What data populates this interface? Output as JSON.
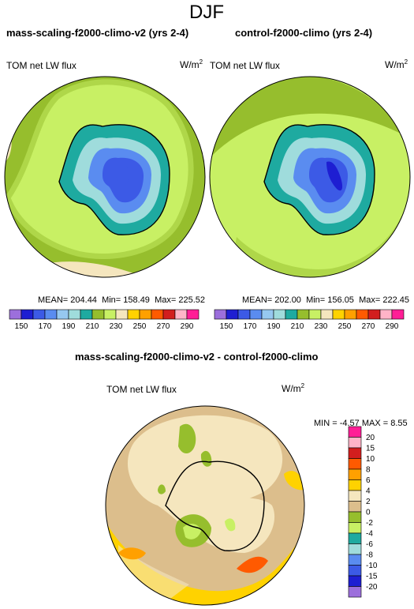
{
  "figure_title": "DJF",
  "panels": [
    {
      "title": "mass-scaling-f2000-climo-v2 (yrs 2-4)",
      "variable": "TOM net LW flux",
      "units_base": "W/m",
      "units_exp": "2",
      "mean_label": "MEAN=",
      "mean": "204.44",
      "min_label": "Min=",
      "min": "158.49",
      "max_label": "Max=",
      "max": "225.52"
    },
    {
      "title": "control-f2000-climo (yrs 2-4)",
      "variable": "TOM net LW flux",
      "units_base": "W/m",
      "units_exp": "2",
      "mean_label": "MEAN=",
      "mean": "202.00",
      "min_label": "Min=",
      "min": "156.05",
      "max_label": "Max=",
      "max": "222.45"
    }
  ],
  "abs_colorbar": {
    "colors": [
      "#9c6fdc",
      "#1e1ed2",
      "#3c5ae6",
      "#5a8cf0",
      "#96c8f0",
      "#9fdcdc",
      "#1eaaa0",
      "#96be2d",
      "#c8f064",
      "#f5e6be",
      "#ffd200",
      "#ffa000",
      "#ff5a00",
      "#d21e1e",
      "#ffb4c8",
      "#ff1e96"
    ],
    "labels": [
      "150",
      "170",
      "190",
      "210",
      "230",
      "250",
      "270",
      "290"
    ]
  },
  "diff": {
    "title": "mass-scaling-f2000-climo-v2 - control-f2000-climo",
    "variable": "TOM net LW flux",
    "units_base": "W/m",
    "units_exp": "2",
    "min_label": "MIN =",
    "min": "-4.57",
    "max_label": "MAX =",
    "max": "8.55"
  },
  "diff_colorbar": {
    "colors": [
      "#ff1e96",
      "#ffb4c8",
      "#d21e1e",
      "#ff5a00",
      "#ffa000",
      "#ffd200",
      "#f5e6be",
      "#dcbe8c",
      "#96be2d",
      "#c8f064",
      "#1eaaa0",
      "#9fdcdc",
      "#5a8cf0",
      "#3c5ae6",
      "#1e1ed2",
      "#9c6fdc"
    ],
    "labels": [
      "20",
      "15",
      "10",
      "8",
      "6",
      "4",
      "2",
      "0",
      "-2",
      "-4",
      "-6",
      "-8",
      "-10",
      "-15",
      "-20"
    ]
  }
}
